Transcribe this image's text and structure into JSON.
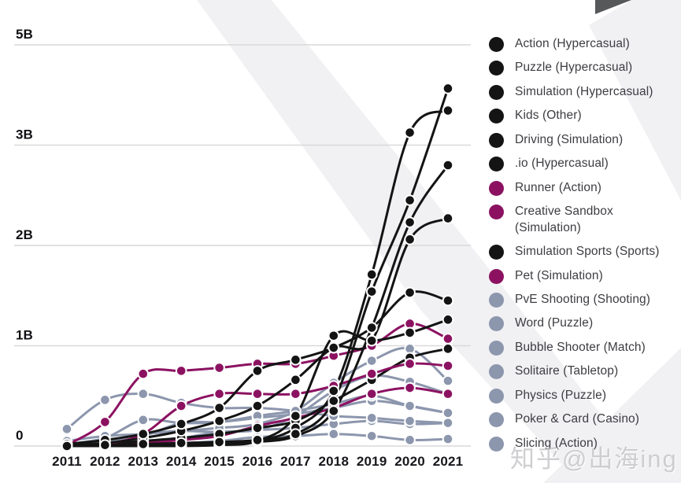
{
  "watermark": {
    "text": "知乎@出海ing"
  },
  "colors": {
    "black": "#141414",
    "magenta": "#8c1261",
    "gray": "#8c96ad",
    "grid": "#d9d9d9",
    "background_shape": "#f1f1f3",
    "corner_shape": "#57585a"
  },
  "chart_data": {
    "type": "line",
    "title": "",
    "xlabel": "",
    "ylabel": "",
    "units": "downloads (billions)",
    "grid": "horizontal",
    "legend_position": "right",
    "x_labels": [
      "2011",
      "2012",
      "2013",
      "2014",
      "2015",
      "2016",
      "2017",
      "2018",
      "2019",
      "2020",
      "2021"
    ],
    "ytick_labels": [
      "0",
      "1B",
      "2B",
      "3B",
      "5B"
    ],
    "ylim": [
      0,
      5
    ],
    "series": [
      {
        "label": "Action (Hypercasual)",
        "color_key": "black",
        "values": [
          0.0,
          0.01,
          0.02,
          0.03,
          0.04,
          0.06,
          0.12,
          0.45,
          1.54,
          2.45,
          4.13
        ]
      },
      {
        "label": "Puzzle (Hypercasual)",
        "color_key": "black",
        "values": [
          0.0,
          0.0,
          0.01,
          0.02,
          0.03,
          0.05,
          0.18,
          0.55,
          1.71,
          3.25,
          3.69
        ]
      },
      {
        "label": "Simulation (Hypercasual)",
        "color_key": "black",
        "values": [
          0.0,
          0.0,
          0.0,
          0.01,
          0.02,
          0.04,
          0.1,
          0.35,
          1.18,
          2.23,
          2.8
        ]
      },
      {
        "label": "Kids (Other)",
        "color_key": "black",
        "values": [
          0.02,
          0.06,
          0.12,
          0.22,
          0.38,
          0.75,
          0.86,
          0.98,
          1.18,
          1.53,
          1.45
        ]
      },
      {
        "label": "Driving (Simulation)",
        "color_key": "black",
        "values": [
          0.01,
          0.03,
          0.08,
          0.15,
          0.25,
          0.4,
          0.66,
          0.98,
          1.05,
          2.06,
          2.27
        ]
      },
      {
        "label": ".io (Hypercasual)",
        "color_key": "black",
        "values": [
          0.0,
          0.0,
          0.0,
          0.0,
          0.01,
          0.05,
          0.3,
          1.1,
          1.05,
          1.13,
          1.26
        ]
      },
      {
        "label": "Runner (Action)",
        "color_key": "magenta",
        "values": [
          0.01,
          0.24,
          0.72,
          0.75,
          0.78,
          0.82,
          0.82,
          0.9,
          1.0,
          1.22,
          1.07
        ]
      },
      {
        "label": "Creative Sandbox (Simulation)",
        "color_key": "magenta",
        "values": [
          0.0,
          0.02,
          0.12,
          0.4,
          0.52,
          0.52,
          0.52,
          0.6,
          0.72,
          0.82,
          0.8
        ]
      },
      {
        "label": "Simulation Sports (Sports)",
        "color_key": "black",
        "values": [
          0.01,
          0.02,
          0.05,
          0.08,
          0.12,
          0.18,
          0.25,
          0.45,
          0.66,
          0.88,
          0.97
        ]
      },
      {
        "label": "Pet (Simulation)",
        "color_key": "magenta",
        "values": [
          0.0,
          0.01,
          0.03,
          0.06,
          0.1,
          0.2,
          0.28,
          0.38,
          0.52,
          0.58,
          0.52
        ]
      },
      {
        "label": "PvE Shooting (Shooting)",
        "color_key": "gray",
        "values": [
          0.05,
          0.1,
          0.12,
          0.15,
          0.18,
          0.22,
          0.35,
          0.63,
          0.85,
          0.97,
          0.65
        ]
      },
      {
        "label": "Word (Puzzle)",
        "color_key": "gray",
        "values": [
          0.0,
          0.02,
          0.05,
          0.08,
          0.14,
          0.16,
          0.3,
          0.55,
          0.7,
          0.64,
          0.52
        ]
      },
      {
        "label": "Bubble Shooter (Match)",
        "color_key": "gray",
        "values": [
          0.02,
          0.08,
          0.26,
          0.23,
          0.24,
          0.3,
          0.35,
          0.42,
          0.5,
          0.4,
          0.33
        ]
      },
      {
        "label": "Solitaire (Tabletop)",
        "color_key": "gray",
        "values": [
          0.01,
          0.05,
          0.1,
          0.23,
          0.24,
          0.28,
          0.32,
          0.38,
          0.45,
          0.4,
          0.33
        ]
      },
      {
        "label": "Physics (Puzzle)",
        "color_key": "gray",
        "values": [
          0.17,
          0.46,
          0.52,
          0.43,
          0.38,
          0.38,
          0.35,
          0.3,
          0.28,
          0.25,
          0.23
        ]
      },
      {
        "label": "Poker & Card (Casino)",
        "color_key": "gray",
        "values": [
          0.02,
          0.05,
          0.12,
          0.15,
          0.14,
          0.16,
          0.18,
          0.22,
          0.25,
          0.22,
          0.23
        ]
      },
      {
        "label": "Slicing (Action)",
        "color_key": "gray",
        "values": [
          0.0,
          0.01,
          0.02,
          0.03,
          0.05,
          0.09,
          0.1,
          0.12,
          0.1,
          0.06,
          0.07
        ]
      }
    ]
  }
}
